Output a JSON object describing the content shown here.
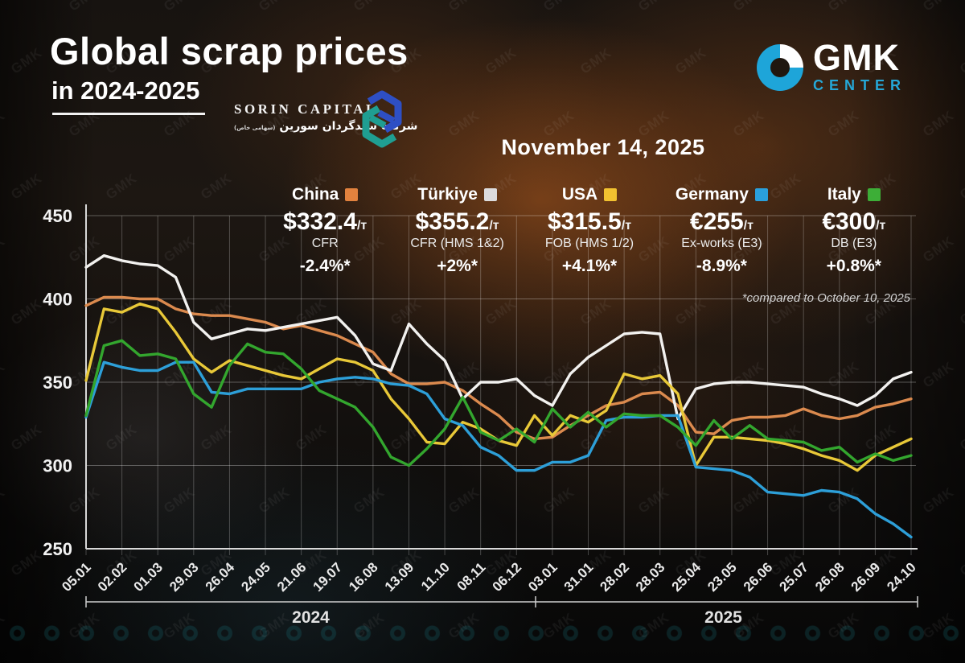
{
  "header": {
    "title_line1": "Global scrap prices",
    "title_line2": "in 2024-2025"
  },
  "partner": {
    "name": "SORIN CAPITAL",
    "persian": "شرکت سبدگردان سورین",
    "persian_small": "(سهامی خاص)"
  },
  "brand": {
    "name": "GMK",
    "subtitle": "CENTER",
    "accent": "#25a8d8"
  },
  "date_label": "November 14, 2025",
  "footnote": "*compared to October 10, 2025",
  "watermark": "GMK",
  "legend": {
    "items": [
      {
        "country": "China",
        "color": "#e2823e",
        "value": "$332.4",
        "unit": "/т",
        "spec": "CFR",
        "change": "-2.4%*"
      },
      {
        "country": "Türkiye",
        "color": "#dcdcde",
        "value": "$355.2",
        "unit": "/т",
        "spec": "CFR (HMS 1&2)",
        "change": "+2%*"
      },
      {
        "country": "USA",
        "color": "#f2c230",
        "value": "$315.5",
        "unit": "/т",
        "spec": "FOB (HMS 1/2)",
        "change": "+4.1%*"
      },
      {
        "country": "Germany",
        "color": "#2aa0dc",
        "value": "€255",
        "unit": "/т",
        "spec": "Ex-works (E3)",
        "change": "-8.9%*"
      },
      {
        "country": "Italy",
        "color": "#3dae37",
        "value": "€300",
        "unit": "/т",
        "spec": "DB (E3)",
        "change": "+0.8%*"
      }
    ]
  },
  "chart_data": {
    "type": "line",
    "title": "Global scrap prices in 2024-2025",
    "y_axis": {
      "min": 250,
      "max": 450,
      "step": 50,
      "tick_labels": [
        "450",
        "400",
        "350",
        "300",
        "250"
      ],
      "grid": true
    },
    "x_ticks": [
      "05.01",
      "02.02",
      "01.03",
      "29.03",
      "26.04",
      "24.05",
      "21.06",
      "19.07",
      "16.08",
      "13.09",
      "11.10",
      "08.11",
      "06.12",
      "03.01",
      "31.01",
      "28.02",
      "28.03",
      "25.04",
      "23.05",
      "26.06",
      "25.07",
      "26.08",
      "26.09",
      "24.10"
    ],
    "year_groups": [
      {
        "label": "2024",
        "tick_range": [
          0,
          12
        ]
      },
      {
        "label": "2025",
        "tick_range": [
          13,
          23
        ]
      }
    ],
    "points_per_tick_interval": 2,
    "legend_position": "top",
    "series": [
      {
        "key": "china",
        "name": "China",
        "color": "#db8a4e",
        "values": [
          396,
          401,
          401,
          400,
          400,
          394,
          391,
          390,
          390,
          388,
          386,
          382,
          384,
          381,
          378,
          373,
          368,
          355,
          349,
          349,
          350,
          345,
          337,
          330,
          320,
          316,
          317,
          324,
          330,
          336,
          338,
          343,
          344,
          336,
          320,
          319,
          327,
          329,
          329,
          330,
          334,
          330,
          328,
          330,
          335,
          337,
          340
        ]
      },
      {
        "key": "turkiye",
        "name": "Türkiye",
        "color": "#f2f1ef",
        "values": [
          419,
          426,
          423,
          421,
          420,
          413,
          386,
          376,
          379,
          382,
          381,
          383,
          385,
          387,
          389,
          378,
          361,
          357,
          385,
          373,
          363,
          340,
          350,
          350,
          352,
          342,
          336,
          355,
          365,
          372,
          379,
          380,
          379,
          328,
          346,
          349,
          350,
          350,
          349,
          348,
          347,
          343,
          340,
          336,
          342,
          352,
          356
        ]
      },
      {
        "key": "usa",
        "name": "USA",
        "color": "#e8c838",
        "values": [
          351,
          394,
          392,
          397,
          394,
          380,
          364,
          356,
          363,
          360,
          357,
          354,
          352,
          358,
          364,
          362,
          357,
          340,
          328,
          314,
          313,
          326,
          322,
          315,
          312,
          330,
          318,
          330,
          326,
          333,
          355,
          352,
          354,
          343,
          300,
          317,
          317,
          316,
          315,
          313,
          310,
          306,
          303,
          297,
          306,
          311,
          316
        ]
      },
      {
        "key": "germany",
        "name": "Germany",
        "color": "#2d9fd8",
        "values": [
          329,
          362,
          359,
          357,
          357,
          362,
          362,
          344,
          343,
          346,
          346,
          346,
          346,
          350,
          352,
          353,
          352,
          349,
          348,
          343,
          328,
          324,
          311,
          306,
          297,
          297,
          302,
          302,
          306,
          327,
          329,
          329,
          330,
          330,
          299,
          298,
          297,
          293,
          284,
          283,
          282,
          285,
          284,
          280,
          271,
          265,
          257
        ]
      },
      {
        "key": "italy",
        "name": "Italy",
        "color": "#33a62e",
        "values": [
          330,
          372,
          375,
          366,
          367,
          364,
          343,
          335,
          360,
          373,
          368,
          367,
          358,
          345,
          340,
          335,
          323,
          305,
          300,
          310,
          322,
          341,
          320,
          315,
          322,
          314,
          334,
          323,
          332,
          323,
          331,
          330,
          330,
          323,
          312,
          327,
          316,
          324,
          316,
          315,
          314,
          309,
          311,
          302,
          307,
          303,
          306
        ]
      }
    ]
  }
}
